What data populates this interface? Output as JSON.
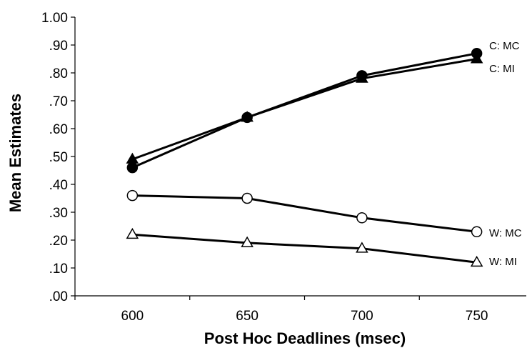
{
  "chart_data": {
    "type": "line",
    "title": "",
    "xlabel": "Post Hoc Deadlines (msec)",
    "ylabel": "Mean Estimates",
    "x": [
      600,
      650,
      700,
      750
    ],
    "x_ticks": [
      "600",
      "650",
      "700",
      "750"
    ],
    "xlim": [
      575,
      775
    ],
    "ylim": [
      0,
      1.0
    ],
    "y_ticks": [
      0,
      0.1,
      0.2,
      0.3,
      0.4,
      0.5,
      0.6,
      0.7,
      0.8,
      0.9,
      1.0
    ],
    "y_tick_labels": [
      ".00",
      ".10",
      ".20",
      ".30",
      ".40",
      ".50",
      ".60",
      ".70",
      ".80",
      ".90",
      "1.00"
    ],
    "grid": false,
    "legend": "none",
    "series": [
      {
        "name": "C: MC",
        "marker": "circle",
        "fill": "#000000",
        "values": [
          0.46,
          0.64,
          0.79,
          0.87
        ]
      },
      {
        "name": "C: MI",
        "marker": "triangle",
        "fill": "#000000",
        "values": [
          0.49,
          0.64,
          0.78,
          0.85
        ]
      },
      {
        "name": "W: MC",
        "marker": "circle",
        "fill": "#ffffff",
        "values": [
          0.36,
          0.35,
          0.28,
          0.23
        ]
      },
      {
        "name": "W: MI",
        "marker": "triangle",
        "fill": "#ffffff",
        "values": [
          0.22,
          0.19,
          0.17,
          0.12
        ]
      }
    ],
    "colors": {
      "line": "#000000",
      "background": "#ffffff"
    }
  }
}
